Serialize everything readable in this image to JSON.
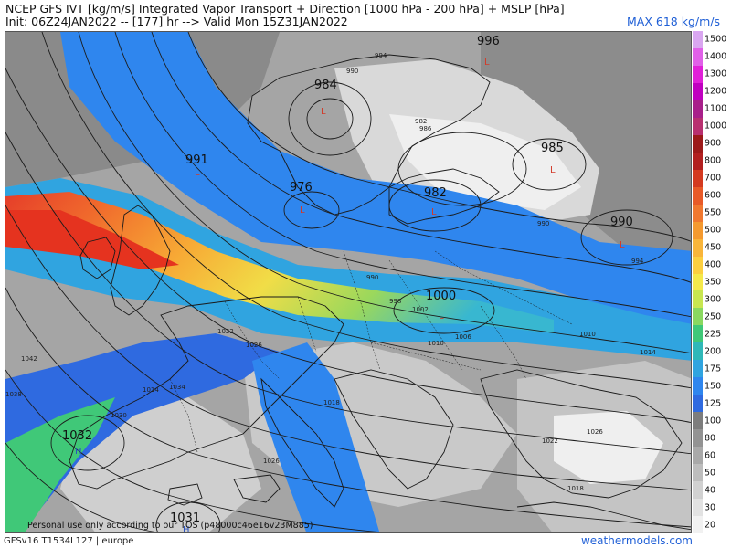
{
  "header": {
    "title": "NCEP GFS IVT [kg/m/s] Integrated Vapor Transport + Direction [1000 hPa - 200 hPa] + MSLP [hPa]",
    "subtitle": "Init: 06Z24JAN2022 -- [177] hr --> Valid Mon 15Z31JAN2022",
    "max_label": "MAX 618 kg/m/s"
  },
  "legend": {
    "levels": [
      "1500",
      "1400",
      "1300",
      "1200",
      "1100",
      "1000",
      "900",
      "800",
      "700",
      "600",
      "550",
      "500",
      "450",
      "400",
      "350",
      "300",
      "250",
      "225",
      "200",
      "175",
      "150",
      "125",
      "100",
      "80",
      "60",
      "50",
      "40",
      "30",
      "20"
    ],
    "colors": [
      "#d9a6f0",
      "#e060e8",
      "#e020d8",
      "#c000c0",
      "#a8208a",
      "#b83070",
      "#9c1a1a",
      "#b22020",
      "#d43a20",
      "#e85a28",
      "#f07830",
      "#f59a30",
      "#f9b53a",
      "#fccf40",
      "#f5e94a",
      "#c8e650",
      "#8ad860",
      "#40c878",
      "#30b8b8",
      "#30a4e0",
      "#2f86ee",
      "#2f6ae0",
      "#7d7d7d",
      "#939393",
      "#a9a9a9",
      "#bdbdbd",
      "#d1d1d1",
      "#e2e2e2",
      "#f1f1f1"
    ]
  },
  "pressure_labels": [
    {
      "text": "996",
      "type": "low"
    },
    {
      "text": "984",
      "type": "low"
    },
    {
      "text": "991",
      "type": "low"
    },
    {
      "text": "976",
      "type": "low"
    },
    {
      "text": "982",
      "type": "low"
    },
    {
      "text": "985",
      "type": "low"
    },
    {
      "text": "990",
      "type": "low"
    },
    {
      "text": "1000",
      "type": "low"
    },
    {
      "text": "1032",
      "type": "high"
    },
    {
      "text": "1031",
      "type": "high"
    }
  ],
  "isobar_labels": [
    "990",
    "994",
    "982",
    "986",
    "998",
    "990",
    "1002",
    "1022",
    "1026",
    "1010",
    "1006",
    "1014",
    "1018",
    "1010",
    "1014",
    "1034",
    "1038",
    "1042",
    "1030",
    "1026",
    "1018",
    "1022",
    "1026",
    "990",
    "994"
  ],
  "low_marker": "L",
  "high_marker": "H",
  "footer": {
    "model": "GFSv16 T1534L127 | europe",
    "site": "weathermodels.com",
    "disclaimer": "Personal use only according to our TOS (p48000c46e16v23M885)"
  }
}
